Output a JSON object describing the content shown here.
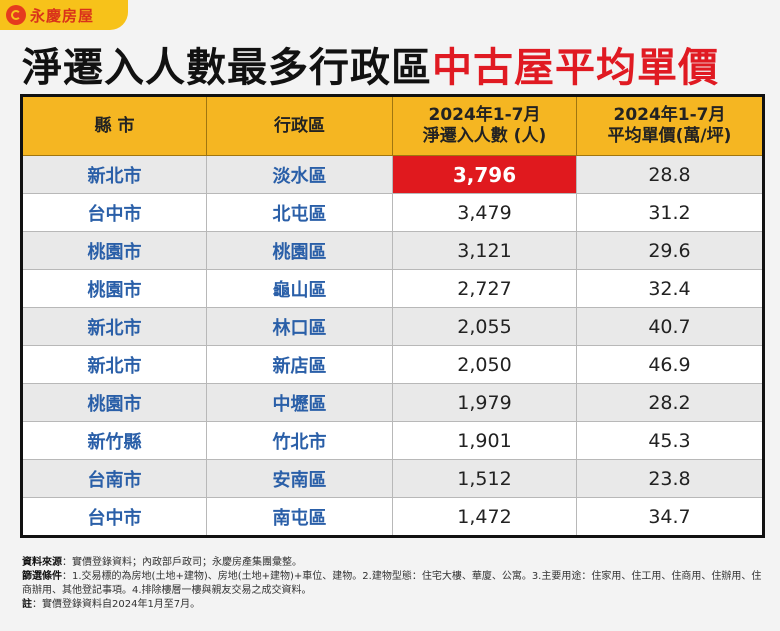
{
  "brand": {
    "name": "永慶房屋",
    "logo_icon": "yungching-logo-icon"
  },
  "title": {
    "part1": "淨遷入人數最多行政區",
    "part2": "中古屋平均單價"
  },
  "chart_data": {
    "type": "table",
    "columns": [
      "縣 市",
      "行政區",
      "2024年1-7月\n淨遷入人數 (人)",
      "2024年1-7月\n平均單價(萬/坪)"
    ],
    "header": {
      "county": "縣 市",
      "district": "行政區",
      "migration_line1": "2024年1-7月",
      "migration_line2": "淨遷入人數 (人)",
      "price_line1": "2024年1-7月",
      "price_line2": "平均單價(萬/坪)"
    },
    "rows": [
      {
        "county": "新北市",
        "district": "淡水區",
        "net_migration": "3,796",
        "avg_price": "28.8"
      },
      {
        "county": "台中市",
        "district": "北屯區",
        "net_migration": "3,479",
        "avg_price": "31.2"
      },
      {
        "county": "桃園市",
        "district": "桃園區",
        "net_migration": "3,121",
        "avg_price": "29.6"
      },
      {
        "county": "桃園市",
        "district": "龜山區",
        "net_migration": "2,727",
        "avg_price": "32.4"
      },
      {
        "county": "新北市",
        "district": "林口區",
        "net_migration": "2,055",
        "avg_price": "40.7"
      },
      {
        "county": "新北市",
        "district": "新店區",
        "net_migration": "2,050",
        "avg_price": "46.9"
      },
      {
        "county": "桃園市",
        "district": "中壢區",
        "net_migration": "1,979",
        "avg_price": "28.2"
      },
      {
        "county": "新竹縣",
        "district": "竹北市",
        "net_migration": "1,901",
        "avg_price": "45.3"
      },
      {
        "county": "台南市",
        "district": "安南區",
        "net_migration": "1,512",
        "avg_price": "23.8"
      },
      {
        "county": "台中市",
        "district": "南屯區",
        "net_migration": "1,472",
        "avg_price": "34.7"
      }
    ],
    "colors": {
      "header": "#f5b622",
      "highlight": "#e0191e",
      "county_text": "#2a5fa8",
      "title_accent": "#e01a22"
    }
  },
  "notes": {
    "source_label": "資料來源",
    "source_text": "：實價登錄資料；內政部戶政司；永慶房產集團彙整。",
    "filter_label": "篩選條件",
    "filter_text": "：1.交易標的為房地(土地+建物)、房地(土地+建物)+車位、建物。2.建物型態：住宅大樓、華廈、公寓。3.主要用途：住家用、住工用、住商用、住辦用、住商辦用、其他登記事項。4.排除樓層一樓與親友交易之成交資料。",
    "note_label": "註",
    "note_text": "：實價登錄資料自2024年1月至7月。"
  }
}
